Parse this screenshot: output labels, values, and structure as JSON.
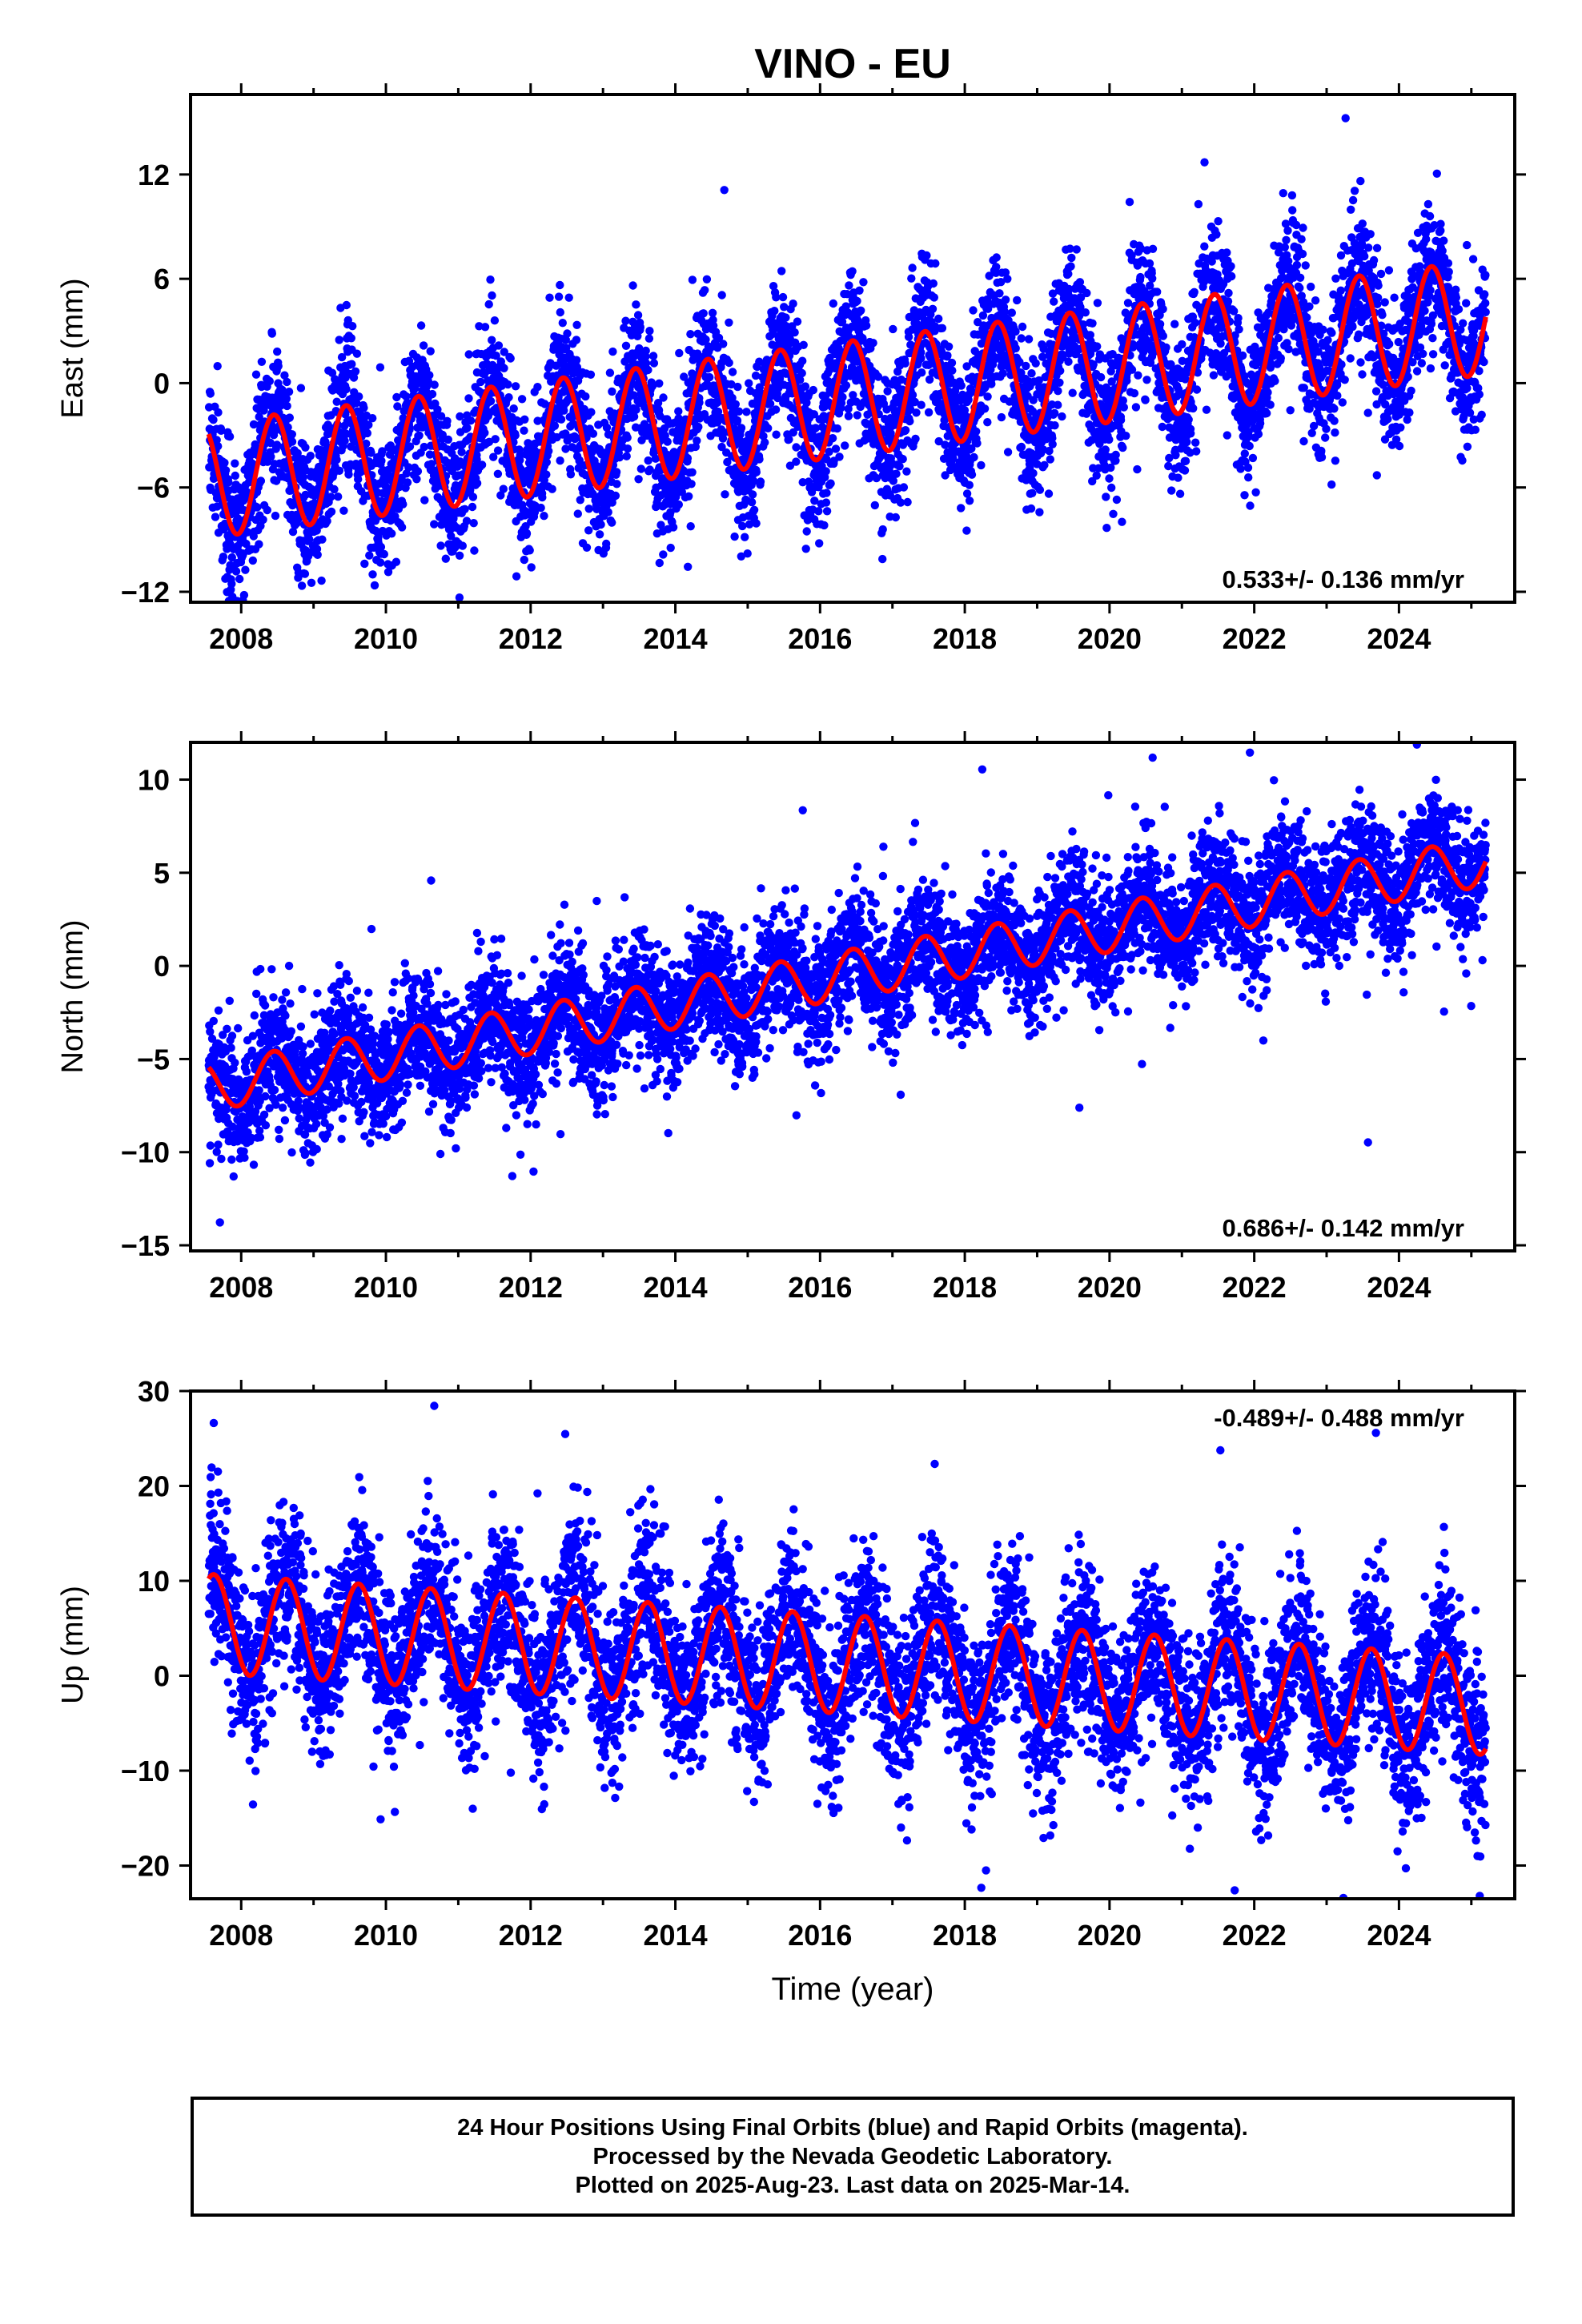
{
  "chart_data": [
    {
      "type": "scatter",
      "panel": "east",
      "title": "VINO - EU",
      "ylabel": "East (mm)",
      "xlabel": "",
      "xlim": [
        2007.3,
        2025.6
      ],
      "ylim": [
        -12.6,
        16.6
      ],
      "xticks": [
        2008,
        2010,
        2012,
        2014,
        2016,
        2018,
        2020,
        2022,
        2024
      ],
      "yticks": [
        -12,
        -6,
        0,
        6,
        12
      ],
      "rate_text": "0.533+/- 0.136 mm/yr",
      "model": {
        "start": 2007.55,
        "end": 2025.2,
        "offset": -5.6,
        "trend": 0.533,
        "amplitude": 3.3,
        "phase_peak": 0.45
      },
      "scatter_noise": 2.0,
      "series": [
        {
          "name": "Final Orbits",
          "color": "#0000ff"
        },
        {
          "name": "Model",
          "color": "#ff0000"
        }
      ]
    },
    {
      "type": "scatter",
      "panel": "north",
      "title": "",
      "ylabel": "North (mm)",
      "xlabel": "",
      "xlim": [
        2007.3,
        2025.6
      ],
      "ylim": [
        -15.3,
        12.0
      ],
      "xticks": [
        2008,
        2010,
        2012,
        2014,
        2016,
        2018,
        2020,
        2022,
        2024
      ],
      "yticks": [
        -15,
        -10,
        -5,
        0,
        5,
        10
      ],
      "rate_text": "0.686+/- 0.142 mm/yr",
      "model": {
        "start": 2007.55,
        "end": 2025.2,
        "offset": -6.5,
        "trend": 0.686,
        "amplitude": 1.3,
        "phase_peak": 0.45
      },
      "scatter_noise": 1.7,
      "series": [
        {
          "name": "Final Orbits",
          "color": "#0000ff"
        },
        {
          "name": "Model",
          "color": "#ff0000"
        }
      ]
    },
    {
      "type": "scatter",
      "panel": "up",
      "title": "",
      "ylabel": "Up (mm)",
      "xlabel": "Time (year)",
      "xlim": [
        2007.3,
        2025.6
      ],
      "ylim": [
        -23.5,
        30.0
      ],
      "xticks": [
        2008,
        2010,
        2012,
        2014,
        2016,
        2018,
        2020,
        2022,
        2024
      ],
      "yticks": [
        -20,
        -10,
        0,
        10,
        20,
        30
      ],
      "rate_text": "-0.489+/- 0.488 mm/yr",
      "model": {
        "start": 2007.55,
        "end": 2025.2,
        "offset": 5.5,
        "trend": -0.489,
        "amplitude": 5.2,
        "phase_peak": 0.62
      },
      "scatter_noise": 4.5,
      "series": [
        {
          "name": "Final Orbits",
          "color": "#0000ff"
        },
        {
          "name": "Model",
          "color": "#ff0000"
        }
      ]
    }
  ],
  "footer": {
    "line1": "24 Hour Positions Using Final Orbits (blue) and Rapid Orbits (magenta).",
    "line2": "Processed by the Nevada Geodetic Laboratory.",
    "line3": "Plotted on 2025-Aug-23. Last data on 2025-Mar-14."
  }
}
